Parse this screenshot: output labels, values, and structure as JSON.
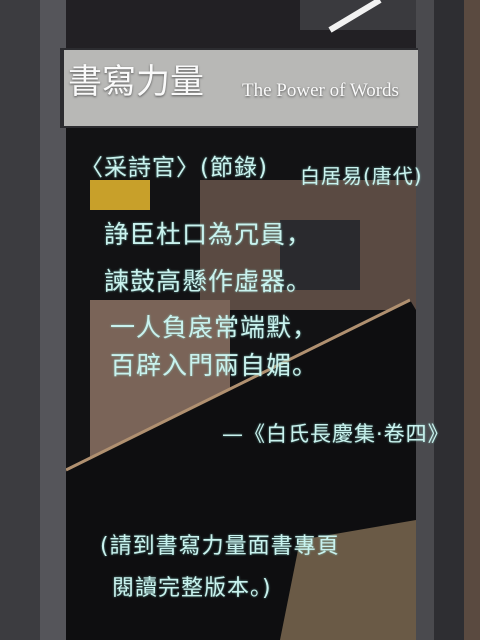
{
  "header": {
    "title": "書寫力量",
    "subtitle": "The Power of Words"
  },
  "poem": {
    "title": "〈采詩官〉(節錄)",
    "author": "白居易(唐代)",
    "lines": [
      "諍臣杜口為冗員，",
      "諫鼓高懸作虛器。",
      "一人負扆常端默，",
      "百辟入門兩自媚。"
    ],
    "source": "—《白氏長慶集·卷四》"
  },
  "note": {
    "lines": [
      "(請到書寫力量面書專頁",
      "閱讀完整版本。)"
    ]
  }
}
